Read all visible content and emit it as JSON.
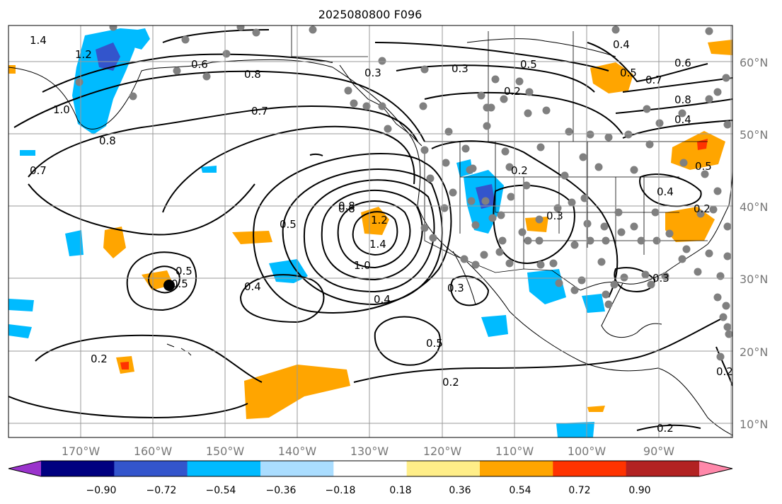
{
  "title": "2025080800 F096",
  "lon_labels": [
    "170°W",
    "160°W",
    "150°W",
    "140°W",
    "130°W",
    "120°W",
    "110°W",
    "100°W",
    "90°W"
  ],
  "lat_labels": [
    "60°N",
    "50°N",
    "40°N",
    "30°N",
    "20°N",
    "10°N"
  ],
  "contour_labels": [
    "1.4",
    "1.2",
    "1.0",
    "0.6",
    "0.8",
    "0.7",
    "0.8",
    "0.7",
    "0.8",
    "0.3",
    "0.5",
    "0.3",
    "0.2",
    "0.5",
    "0.4",
    "0.5",
    "0.7",
    "0.6",
    "0.8",
    "0.4",
    "0.5",
    "0.8",
    "1.2",
    "1.4",
    "1.0",
    "0.5",
    "0.4",
    "0.4",
    "0.2",
    "0.3",
    "0.5",
    "0.2",
    "0.2",
    "0.2",
    "0.3",
    "0.3",
    "0.4",
    "0.5",
    "0.2",
    "0.2"
  ],
  "colorbar": {
    "tick_labels": [
      "−0.90",
      "−0.72",
      "−0.54",
      "−0.36",
      "−0.18",
      "0.18",
      "0.36",
      "0.54",
      "0.72",
      "0.90"
    ],
    "colors": [
      "#9a33cc",
      "#000080",
      "#3355cc",
      "#00bbff",
      "#aaddff",
      "#ffffff",
      "#ffee88",
      "#ffa500",
      "#ff3300",
      "#b22222",
      "#ff88aa"
    ]
  },
  "colors": {
    "contour": "#000000",
    "gridline": "#9a9a9a",
    "station_dot": "#808080",
    "axis_label": "#777777"
  }
}
